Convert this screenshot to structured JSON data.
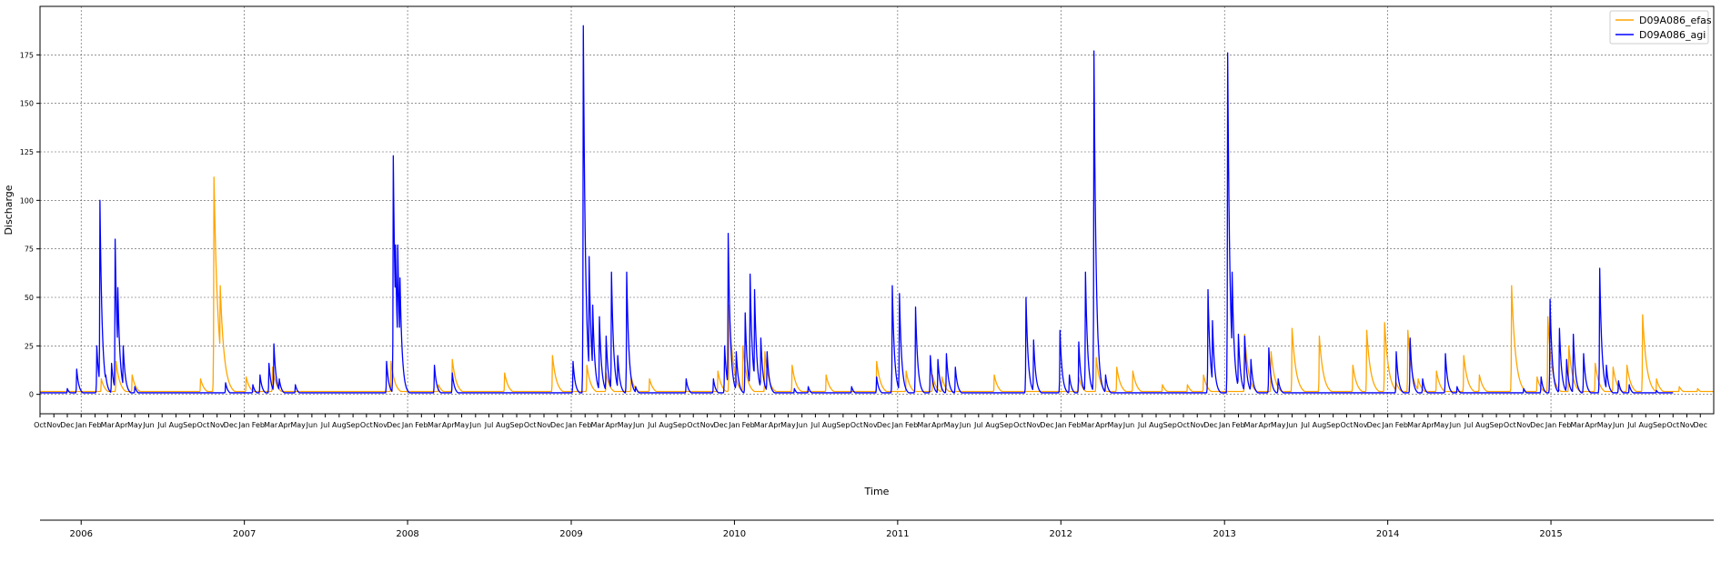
{
  "chart_data": {
    "type": "line",
    "xlabel": "Time",
    "ylabel": "Discharge",
    "grid": true,
    "legend_position": "top-right",
    "x_range": [
      "2005-10-01",
      "2015-12-31"
    ],
    "ylim": [
      -10,
      200
    ],
    "y_ticks": [
      0,
      25,
      50,
      75,
      100,
      125,
      150,
      175
    ],
    "year_ticks": [
      "2006",
      "2007",
      "2008",
      "2009",
      "2010",
      "2011",
      "2012",
      "2013",
      "2014",
      "2015"
    ],
    "month_labels": [
      "Jan",
      "Feb",
      "Mar",
      "Apr",
      "May",
      "Jun",
      "Jul",
      "Aug",
      "Sep",
      "Oct",
      "Nov",
      "Dec"
    ],
    "baseline_efas": 1.5,
    "baseline_agi": 0.8,
    "series": [
      {
        "name": "D09A086_efas",
        "color": "#FFA500",
        "peaks": [
          [
            "2006-02-15",
            8
          ],
          [
            "2006-03-20",
            17
          ],
          [
            "2006-04-25",
            10
          ],
          [
            "2006-09-25",
            8
          ],
          [
            "2006-10-25",
            112
          ],
          [
            "2006-11-08",
            56
          ],
          [
            "2007-01-05",
            9
          ],
          [
            "2007-03-05",
            14
          ],
          [
            "2007-11-25",
            17
          ],
          [
            "2008-03-10",
            5
          ],
          [
            "2008-04-10",
            18
          ],
          [
            "2008-08-05",
            11
          ],
          [
            "2008-11-20",
            20
          ],
          [
            "2009-02-05",
            15
          ],
          [
            "2009-03-20",
            11
          ],
          [
            "2009-05-15",
            9
          ],
          [
            "2009-06-25",
            8
          ],
          [
            "2009-11-25",
            12
          ],
          [
            "2009-12-20",
            46
          ],
          [
            "2010-01-20",
            25
          ],
          [
            "2010-03-10",
            22
          ],
          [
            "2010-05-10",
            15
          ],
          [
            "2010-07-25",
            10
          ],
          [
            "2010-11-15",
            17
          ],
          [
            "2011-01-20",
            12
          ],
          [
            "2011-03-20",
            10
          ],
          [
            "2011-04-10",
            9
          ],
          [
            "2011-08-05",
            10
          ],
          [
            "2012-02-10",
            9
          ],
          [
            "2012-03-20",
            19
          ],
          [
            "2012-05-05",
            14
          ],
          [
            "2012-06-10",
            12
          ],
          [
            "2012-08-15",
            5
          ],
          [
            "2012-10-10",
            5
          ],
          [
            "2012-11-15",
            10
          ],
          [
            "2013-02-15",
            31
          ],
          [
            "2013-04-15",
            22
          ],
          [
            "2013-06-01",
            34
          ],
          [
            "2013-08-01",
            30
          ],
          [
            "2013-10-15",
            15
          ],
          [
            "2013-11-15",
            33
          ],
          [
            "2013-12-25",
            37
          ],
          [
            "2014-01-20",
            6
          ],
          [
            "2014-02-15",
            33
          ],
          [
            "2014-03-10",
            8
          ],
          [
            "2014-04-20",
            12
          ],
          [
            "2014-06-20",
            20
          ],
          [
            "2014-07-25",
            10
          ],
          [
            "2014-10-05",
            56
          ],
          [
            "2014-12-01",
            9
          ],
          [
            "2014-12-25",
            40
          ],
          [
            "2015-02-10",
            25
          ],
          [
            "2015-04-10",
            16
          ],
          [
            "2015-05-20",
            14
          ],
          [
            "2015-06-20",
            15
          ],
          [
            "2015-07-25",
            41
          ],
          [
            "2015-08-25",
            8
          ],
          [
            "2015-10-15",
            4
          ],
          [
            "2015-11-25",
            3
          ]
        ]
      },
      {
        "name": "D09A086_agi",
        "color": "#0000FF",
        "peaks": [
          [
            "2005-12-01",
            3
          ],
          [
            "2005-12-22",
            13
          ],
          [
            "2006-02-05",
            25
          ],
          [
            "2006-02-12",
            100
          ],
          [
            "2006-02-25",
            10
          ],
          [
            "2006-03-10",
            16
          ],
          [
            "2006-03-18",
            80
          ],
          [
            "2006-03-24",
            55
          ],
          [
            "2006-04-05",
            25
          ],
          [
            "2006-05-01",
            4
          ],
          [
            "2006-11-20",
            6
          ],
          [
            "2007-01-20",
            5
          ],
          [
            "2007-02-05",
            10
          ],
          [
            "2007-02-25",
            16
          ],
          [
            "2007-03-08",
            26
          ],
          [
            "2007-03-20",
            8
          ],
          [
            "2007-04-25",
            5
          ],
          [
            "2007-11-15",
            17
          ],
          [
            "2007-11-30",
            123
          ],
          [
            "2007-12-05",
            77
          ],
          [
            "2007-12-10",
            77
          ],
          [
            "2007-12-15",
            60
          ],
          [
            "2008-03-01",
            15
          ],
          [
            "2008-04-10",
            11
          ],
          [
            "2009-01-05",
            17
          ],
          [
            "2009-01-28",
            190
          ],
          [
            "2009-02-10",
            71
          ],
          [
            "2009-02-18",
            46
          ],
          [
            "2009-03-05",
            40
          ],
          [
            "2009-03-20",
            30
          ],
          [
            "2009-04-01",
            63
          ],
          [
            "2009-04-15",
            20
          ],
          [
            "2009-05-05",
            63
          ],
          [
            "2009-05-25",
            4
          ],
          [
            "2009-09-15",
            8
          ],
          [
            "2009-11-15",
            8
          ],
          [
            "2009-12-10",
            25
          ],
          [
            "2009-12-18",
            83
          ],
          [
            "2010-01-05",
            22
          ],
          [
            "2010-01-25",
            42
          ],
          [
            "2010-02-05",
            62
          ],
          [
            "2010-02-15",
            54
          ],
          [
            "2010-03-01",
            29
          ],
          [
            "2010-03-15",
            22
          ],
          [
            "2010-05-15",
            3
          ],
          [
            "2010-06-15",
            4
          ],
          [
            "2010-09-20",
            4
          ],
          [
            "2010-11-15",
            9
          ],
          [
            "2010-12-20",
            56
          ],
          [
            "2011-01-05",
            52
          ],
          [
            "2011-02-10",
            45
          ],
          [
            "2011-03-15",
            20
          ],
          [
            "2011-04-01",
            18
          ],
          [
            "2011-04-20",
            21
          ],
          [
            "2011-05-10",
            14
          ],
          [
            "2011-10-15",
            50
          ],
          [
            "2011-11-01",
            28
          ],
          [
            "2011-12-30",
            33
          ],
          [
            "2012-01-20",
            10
          ],
          [
            "2012-02-10",
            27
          ],
          [
            "2012-02-25",
            63
          ],
          [
            "2012-03-15",
            177
          ],
          [
            "2012-03-25",
            25
          ],
          [
            "2012-04-10",
            10
          ],
          [
            "2012-11-25",
            54
          ],
          [
            "2012-12-05",
            38
          ],
          [
            "2013-01-08",
            176
          ],
          [
            "2013-01-18",
            63
          ],
          [
            "2013-02-01",
            31
          ],
          [
            "2013-02-15",
            30
          ],
          [
            "2013-03-01",
            18
          ],
          [
            "2013-04-10",
            24
          ],
          [
            "2013-05-01",
            8
          ],
          [
            "2014-01-20",
            22
          ],
          [
            "2014-02-20",
            29
          ],
          [
            "2014-03-20",
            8
          ],
          [
            "2014-05-10",
            21
          ],
          [
            "2014-06-05",
            4
          ],
          [
            "2014-11-01",
            3
          ],
          [
            "2014-12-10",
            9
          ],
          [
            "2014-12-30",
            49
          ],
          [
            "2015-01-20",
            34
          ],
          [
            "2015-02-05",
            18
          ],
          [
            "2015-02-20",
            31
          ],
          [
            "2015-03-15",
            21
          ],
          [
            "2015-04-20",
            65
          ],
          [
            "2015-05-05",
            15
          ],
          [
            "2015-06-01",
            7
          ],
          [
            "2015-06-25",
            5
          ],
          [
            "2015-08-25",
            2
          ]
        ],
        "end": "2015-10-01"
      }
    ]
  }
}
